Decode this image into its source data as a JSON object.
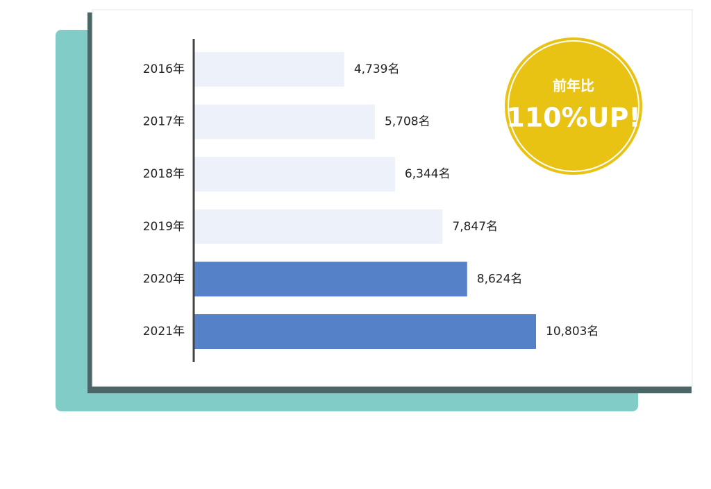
{
  "chart_data": {
    "type": "bar",
    "orientation": "horizontal",
    "categories": [
      "2016年",
      "2017年",
      "2018年",
      "2019年",
      "2020年",
      "2021年"
    ],
    "values": [
      4739,
      5708,
      6344,
      7847,
      8624,
      10803
    ],
    "value_labels": [
      "4,739名",
      "5,708名",
      "6,344名",
      "7,847名",
      "8,624名",
      "10,803名"
    ],
    "colors": [
      "#edf1fa",
      "#edf1fa",
      "#edf1fa",
      "#edf1fa",
      "#5581c9",
      "#5581c9"
    ],
    "badge": {
      "caption": "前年比",
      "headline": "110%UP!"
    }
  }
}
